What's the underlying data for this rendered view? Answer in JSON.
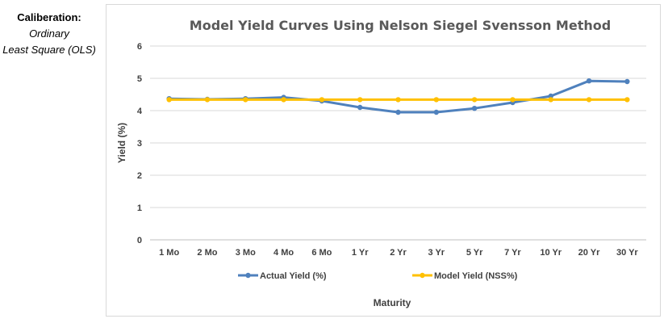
{
  "side_label": {
    "line1": "Caliberation:",
    "line2": "Ordinary",
    "line3": "Least Square (OLS)"
  },
  "chart_data": {
    "type": "line",
    "title": "Model Yield Curves Using Nelson Siegel Svensson Method",
    "xlabel": "Maturity",
    "ylabel": "Yield (%)",
    "ylim": [
      0,
      6
    ],
    "yticks": [
      0,
      1,
      2,
      3,
      4,
      5,
      6
    ],
    "grid": true,
    "legend": "bottom",
    "categories": [
      "1 Mo",
      "2 Mo",
      "3 Mo",
      "4 Mo",
      "6 Mo",
      "1 Yr",
      "2 Yr",
      "3 Yr",
      "5 Yr",
      "7 Yr",
      "10 Yr",
      "20  Yr",
      "30 Yr"
    ],
    "series": [
      {
        "name": "Actual Yield (%)",
        "color": "#4f81bd",
        "values": [
          4.37,
          4.35,
          4.37,
          4.41,
          4.3,
          4.1,
          3.95,
          3.95,
          4.07,
          4.25,
          4.45,
          4.92,
          4.9
        ]
      },
      {
        "name": "Model Yield (NSS%)",
        "color": "#ffc000",
        "values": [
          4.34,
          4.34,
          4.34,
          4.34,
          4.34,
          4.34,
          4.34,
          4.34,
          4.34,
          4.34,
          4.34,
          4.34,
          4.34
        ]
      }
    ]
  }
}
